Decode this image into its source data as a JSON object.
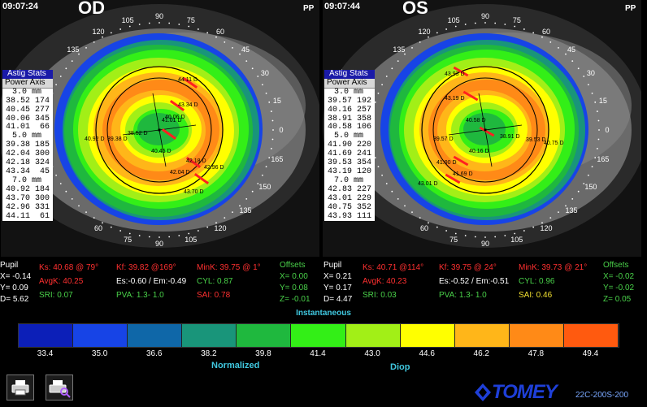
{
  "left": {
    "time": "09:07:24",
    "eye": "OD",
    "pp": "PP",
    "angles": [
      "90",
      "105",
      "120",
      "135",
      "75",
      "60",
      "45",
      "30",
      "15",
      "0",
      "165",
      "150",
      "135",
      "120",
      "105",
      "90",
      "75",
      "60"
    ],
    "stats_header": "Astig Stats",
    "stats_sub": "Power Axis",
    "stats": [
      {
        "mm": "3.0 mm",
        "rows": [
          "38.52 174",
          "40.45 277",
          "40.06 345",
          "41.01  66"
        ]
      },
      {
        "mm": "5.0 mm",
        "rows": [
          "39.38 185",
          "42.04 300",
          "42.18 324",
          "43.34  45"
        ]
      },
      {
        "mm": "7.0 mm",
        "rows": [
          "40.92 184",
          "43.70 300",
          "42.96 331",
          "44.11  61"
        ]
      }
    ],
    "map_labels": [
      "44.11 D",
      "43.34 D",
      "41.01 D",
      "38.52 D",
      "40.06 D",
      "40.92 D",
      "39.38 D",
      "40.45 D",
      "42.18 D",
      "42.96 D",
      "42.04 D",
      "43.70 D"
    ],
    "pupil": {
      "title": "Pupil",
      "x": "X= -0.14",
      "y": "Y=  0.09",
      "d": "D=  5.62"
    },
    "ks": "Ks: 40.68 @ 79°",
    "kf": "Kf: 39.82 @169°",
    "mink": "MinK: 39.75 @  1°",
    "avgk": "AvgK: 40.25",
    "es": "Es:-0.60 / Em:-0.49",
    "cyl": "CYL:  0.87",
    "sri": "SRI: 0.07",
    "pva": "PVA:  1.3-  1.0",
    "sai": "SAI:  0.78",
    "offsets": {
      "title": "Offsets",
      "x": "X=  0.00",
      "y": "Y=  0.08",
      "z": "Z= -0.01"
    }
  },
  "right": {
    "time": "09:07:44",
    "eye": "OS",
    "pp": "PP",
    "angles": [
      "90",
      "105",
      "120",
      "135",
      "75",
      "60",
      "45",
      "30",
      "15",
      "0",
      "165",
      "150",
      "135",
      "120",
      "105",
      "90",
      "75",
      "60"
    ],
    "stats_header": "Astig Stats",
    "stats_sub": "Power Axis",
    "stats": [
      {
        "mm": "3.0 mm",
        "rows": [
          "39.57 192",
          "40.16 257",
          "38.91 358",
          "40.58 106"
        ]
      },
      {
        "mm": "5.0 mm",
        "rows": [
          "41.90 220",
          "41.69 241",
          "39.53 354",
          "43.19 120"
        ]
      },
      {
        "mm": "7.0 mm",
        "rows": [
          "42.83 227",
          "43.01 229",
          "40.75 352",
          "43.93 111"
        ]
      }
    ],
    "map_labels": [
      "43.93 D",
      "43.19 D",
      "40.58 D",
      "39.57 D",
      "38.91 D",
      "39.53 D",
      "40.75 D",
      "40.16 D",
      "41.90 D",
      "41.69 D",
      "43.01 D"
    ],
    "pupil": {
      "title": "Pupil",
      "x": "X=  0.21",
      "y": "Y=  0.17",
      "d": "D=  4.47"
    },
    "ks": "Ks: 40.71 @114°",
    "kf": "Kf: 39.75 @ 24°",
    "mink": "MinK: 39.73 @ 21°",
    "avgk": "AvgK: 40.23",
    "es": "Es:-0.52 / Em:-0.51",
    "cyl": "CYL:  0.96",
    "sri": "SRI: 0.03",
    "pva": "PVA:  1.3-  1.0",
    "sai": "SAI:  0.46",
    "offsets": {
      "title": "Offsets",
      "x": "X= -0.02",
      "y": "Y= -0.02",
      "z": "Z=  0.05"
    }
  },
  "scale": {
    "title": "Instantaneous",
    "labels": [
      "33.4",
      "35.0",
      "36.6",
      "38.2",
      "39.8",
      "41.4",
      "43.0",
      "44.6",
      "46.2",
      "47.8",
      "49.4"
    ],
    "colors": [
      "#0c1fb8",
      "#1744e6",
      "#0f67a8",
      "#19957a",
      "#1fb83e",
      "#33ef17",
      "#a2ef17",
      "#ffff00",
      "#ffb619",
      "#ff8a17",
      "#ff5a0f"
    ],
    "normalized": "Normalized",
    "diop": "Diop"
  },
  "buttons": {
    "print": "print-icon",
    "preview": "print-preview-icon"
  },
  "brand": {
    "name": "TOMEY",
    "model": "22C-200S-200"
  }
}
